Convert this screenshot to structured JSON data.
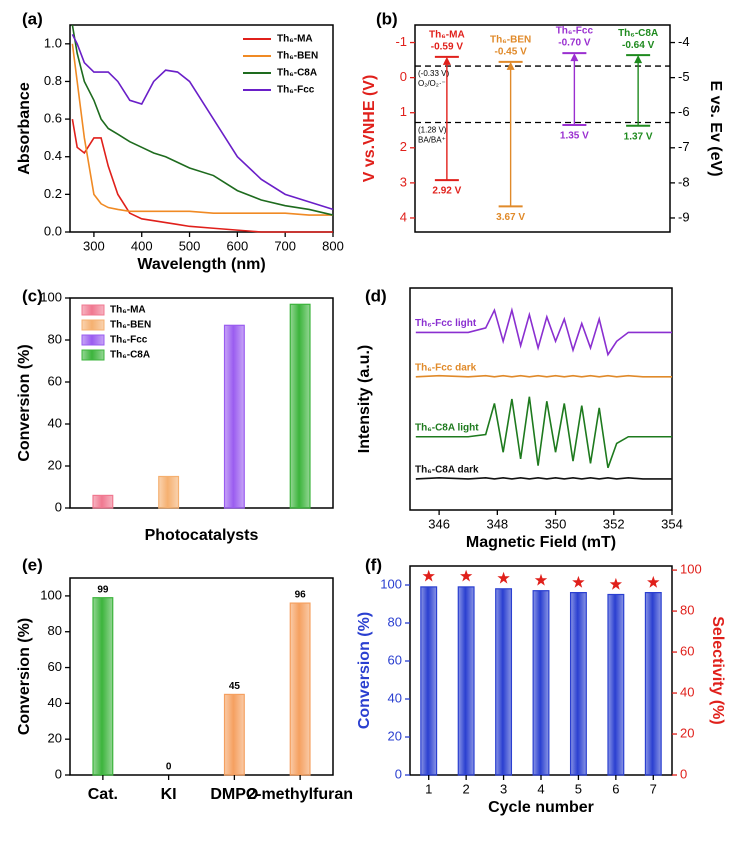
{
  "chart_data": [
    {
      "type": "line",
      "panel_label": "(a)",
      "xlabel": "Wavelength (nm)",
      "ylabel": "Absorbance",
      "legend": "upper right",
      "x": [
        255,
        265,
        280,
        300,
        315,
        330,
        350,
        375,
        400,
        425,
        450,
        475,
        500,
        550,
        600,
        650,
        700,
        750,
        800
      ],
      "xlim": [
        250,
        800
      ],
      "xticks": [
        300,
        400,
        500,
        600,
        700,
        800
      ],
      "ylim": [
        0,
        1.1
      ],
      "yticks": [
        {
          "value": 0,
          "label": "0.0"
        },
        0.2,
        0.4,
        0.6,
        0.8,
        {
          "value": 1,
          "label": "1.0"
        }
      ],
      "series": [
        {
          "name": "Th₆-MA",
          "color": "#e0201b",
          "values": [
            0.6,
            0.45,
            0.42,
            0.5,
            0.5,
            0.35,
            0.2,
            0.1,
            0.07,
            0.06,
            0.05,
            0.04,
            0.03,
            0.02,
            0.01,
            0,
            0,
            0,
            0
          ]
        },
        {
          "name": "Th₆-BEN",
          "color": "#f08a24",
          "values": [
            1.0,
            0.8,
            0.5,
            0.2,
            0.15,
            0.13,
            0.12,
            0.11,
            0.11,
            0.11,
            0.11,
            0.11,
            0.11,
            0.1,
            0.1,
            0.1,
            0.1,
            0.09,
            0.09
          ]
        },
        {
          "name": "Th₆-C8A",
          "color": "#1e6b1e",
          "values": [
            1.1,
            0.95,
            0.8,
            0.7,
            0.6,
            0.55,
            0.52,
            0.48,
            0.45,
            0.42,
            0.4,
            0.37,
            0.34,
            0.3,
            0.22,
            0.17,
            0.14,
            0.12,
            0.09
          ]
        },
        {
          "name": "Th₆-Fcc",
          "color": "#6a1fc8",
          "values": [
            1.05,
            1.0,
            0.9,
            0.85,
            0.85,
            0.85,
            0.8,
            0.7,
            0.68,
            0.8,
            0.86,
            0.85,
            0.8,
            0.6,
            0.4,
            0.28,
            0.2,
            0.16,
            0.12
          ]
        }
      ]
    },
    {
      "type": "band",
      "panel_label": "(b)",
      "ylabel": "V vs.VNHE (V)",
      "y2label": "E vs. Ev (eV)",
      "y_inverted": true,
      "ylim": [
        -1.5,
        4.4
      ],
      "yticks": [
        -1,
        0,
        1,
        2,
        3,
        4
      ],
      "y2lim": [
        -3.5,
        -9.4
      ],
      "y2ticks": [
        -4,
        -5,
        -6,
        -7,
        -8,
        -9
      ],
      "reference_lines": [
        {
          "value": -0.33,
          "label": "(-0.33 V)",
          "couple": "O₂/O₂·⁻"
        },
        {
          "value": 1.28,
          "label": "(1.28 V)",
          "couple": "BA/BA⁺"
        }
      ],
      "series": [
        {
          "name": "Th₆-MA",
          "color": "#e0201b",
          "values": [
            -0.59,
            2.92
          ],
          "value_labels": [
            "-0.59 V",
            "2.92 V"
          ]
        },
        {
          "name": "Th₆-BEN",
          "color": "#e08a2a",
          "values": [
            -0.45,
            3.67
          ],
          "value_labels": [
            "-0.45 V",
            "3.67 V"
          ]
        },
        {
          "name": "Th₆-Fcc",
          "color": "#9a2fd0",
          "values": [
            -0.7,
            1.35
          ],
          "value_labels": [
            "-0.70 V",
            "1.35 V"
          ]
        },
        {
          "name": "Th₆-C8A",
          "color": "#1e8a1e",
          "values": [
            -0.64,
            1.37
          ],
          "value_labels": [
            "-0.64 V",
            "1.37 V"
          ]
        }
      ]
    },
    {
      "type": "bar",
      "panel_label": "(c)",
      "xlabel": "Photocatalysts",
      "ylabel": "Conversion (%)",
      "legend": "upper left",
      "categories": [
        "Th₆-MA",
        "Th₆-BEN",
        "Th₆-Fcc",
        "Th₆-C8A"
      ],
      "values": [
        6,
        15,
        87,
        97
      ],
      "colors": [
        "#f07890",
        "#f5b070",
        "#9a5cf0",
        "#3cb43c"
      ],
      "ylim": [
        0,
        100
      ],
      "yticks": [
        0,
        20,
        40,
        60,
        80,
        100
      ]
    },
    {
      "type": "line",
      "panel_label": "(d)",
      "xlabel": "Magnetic Field (mT)",
      "ylabel": "Intensity (a.u.)",
      "legend": "inline",
      "x": [
        345.2,
        346,
        347,
        347.6,
        347.9,
        348.2,
        348.5,
        348.8,
        349.1,
        349.4,
        349.7,
        350.0,
        350.3,
        350.6,
        350.9,
        351.2,
        351.5,
        351.8,
        352.1,
        352.5,
        353,
        354
      ],
      "xlim": [
        345,
        354
      ],
      "xticks": [
        346,
        348,
        350,
        352,
        354
      ],
      "ylim": [
        0,
        10
      ],
      "series": [
        {
          "name": "Th₆-Fcc light",
          "color": "#8a2fd0",
          "values": [
            8.0,
            8.0,
            8.0,
            8.2,
            9.0,
            7.6,
            9.0,
            7.4,
            8.8,
            7.3,
            8.7,
            7.6,
            8.6,
            7.2,
            8.4,
            7.3,
            8.6,
            7.0,
            7.6,
            8.0,
            8.0,
            8.0
          ]
        },
        {
          "name": "Th₆-Fcc dark",
          "color": "#e08a2a",
          "values": [
            6.0,
            6.05,
            6.0,
            6.05,
            6.0,
            6.05,
            6.0,
            6.05,
            6.0,
            6.05,
            6.0,
            6.05,
            6.0,
            6.05,
            6.0,
            6.05,
            6.0,
            6.05,
            6.0,
            6.05,
            6.0,
            6.0
          ]
        },
        {
          "name": "Th₆-C8A light",
          "color": "#1e7a1e",
          "values": [
            3.3,
            3.3,
            3.3,
            3.4,
            4.8,
            2.6,
            5.0,
            2.3,
            5.1,
            2.0,
            4.9,
            2.6,
            4.8,
            2.2,
            4.7,
            2.1,
            4.6,
            1.9,
            3.0,
            3.3,
            3.3,
            3.3
          ]
        },
        {
          "name": "Th₆-C8A dark",
          "color": "#111111",
          "values": [
            1.4,
            1.45,
            1.4,
            1.45,
            1.4,
            1.45,
            1.4,
            1.45,
            1.4,
            1.45,
            1.4,
            1.45,
            1.4,
            1.45,
            1.4,
            1.45,
            1.4,
            1.45,
            1.4,
            1.45,
            1.4,
            1.4
          ]
        }
      ]
    },
    {
      "type": "bar",
      "panel_label": "(e)",
      "ylabel": "Conversion (%)",
      "show_value_labels": true,
      "categories": [
        "Cat.",
        "KI",
        "DMPO",
        "2-methylfuran"
      ],
      "values": [
        99,
        0,
        45,
        96
      ],
      "colors": [
        "#3cb43c",
        "#f5a060",
        "#f5a060",
        "#f5a060"
      ],
      "ylim": [
        0,
        110
      ],
      "yticks": [
        0,
        20,
        40,
        60,
        80,
        100
      ]
    },
    {
      "type": "bar",
      "panel_label": "(f)",
      "xlabel": "Cycle number",
      "ylabel": "Conversion (%)",
      "y2label": "Selectivity (%)",
      "categories": [
        "1",
        "2",
        "3",
        "4",
        "5",
        "6",
        "7"
      ],
      "ylim": [
        0,
        110
      ],
      "yticks": [
        0,
        20,
        40,
        60,
        80,
        100
      ],
      "y2lim": [
        0,
        102
      ],
      "y2ticks": [
        0,
        20,
        40,
        60,
        80,
        100
      ],
      "series": [
        {
          "color": "#2a3fd0",
          "values": [
            99,
            99,
            98,
            97,
            96,
            95,
            96
          ]
        },
        {
          "color": "#e0201b",
          "axis": "y2",
          "marker": "star",
          "values": [
            97,
            97,
            96,
            95,
            94,
            93,
            94
          ]
        }
      ]
    }
  ]
}
